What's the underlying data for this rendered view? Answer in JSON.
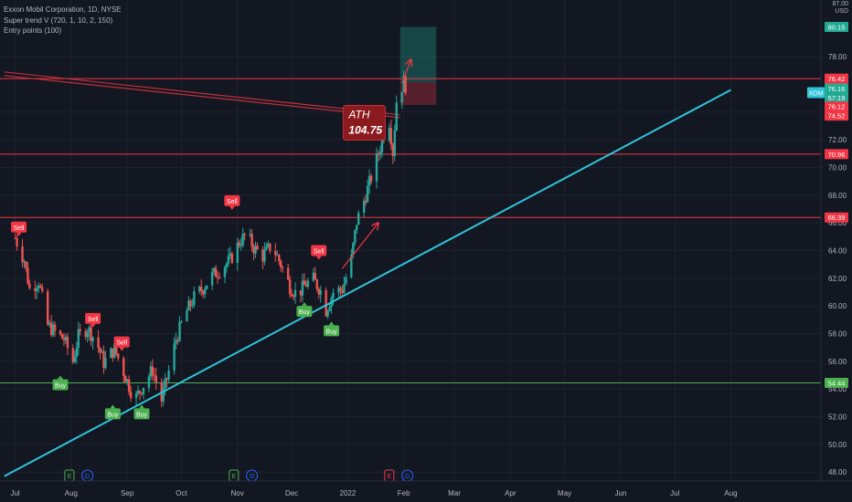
{
  "legend": {
    "symbol_line": "Exxon Mobil Corporation, 1D, NYSE",
    "indicator_1": "Super trend V (720, 1, 10, 2, 150)",
    "indicator_2": "Entry points (100)"
  },
  "chart_data": {
    "type": "candlestick",
    "symbol": "XOM",
    "timeframe": "1D",
    "exchange": "NYSE",
    "currency_label": "USD",
    "price_axis_top_label": "87.00",
    "y_ticks": [
      48.0,
      50.0,
      52.0,
      54.0,
      56.0,
      58.0,
      60.0,
      62.0,
      64.0,
      66.0,
      68.0,
      70.0,
      72.0,
      74.0,
      78.0
    ],
    "ylim": [
      47.4,
      82.4
    ],
    "x_ticks": [
      {
        "label": "Jul",
        "day": 0
      },
      {
        "label": "Aug",
        "day": 31
      },
      {
        "label": "Sep",
        "day": 62
      },
      {
        "label": "Oct",
        "day": 92
      },
      {
        "label": "Nov",
        "day": 123
      },
      {
        "label": "Dec",
        "day": 153
      },
      {
        "label": "2022",
        "day": 184
      },
      {
        "label": "Feb",
        "day": 215
      },
      {
        "label": "Mar",
        "day": 243
      },
      {
        "label": "Apr",
        "day": 274
      },
      {
        "label": "May",
        "day": 304
      },
      {
        "label": "Jun",
        "day": 335
      },
      {
        "label": "Jul",
        "day": 365
      },
      {
        "label": "Aug",
        "day": 396
      }
    ],
    "price_path": [
      {
        "date": "2021-07-01",
        "close": 64.9
      },
      {
        "date": "2021-07-06",
        "close": 63.3
      },
      {
        "date": "2021-07-09",
        "close": 61.2
      },
      {
        "date": "2021-07-14",
        "close": 61.8
      },
      {
        "date": "2021-07-19",
        "close": 58.6
      },
      {
        "date": "2021-07-23",
        "close": 58.1
      },
      {
        "date": "2021-07-28",
        "close": 57.6
      },
      {
        "date": "2021-08-02",
        "close": 56.0
      },
      {
        "date": "2021-08-05",
        "close": 57.8
      },
      {
        "date": "2021-08-10",
        "close": 58.4
      },
      {
        "date": "2021-08-15",
        "close": 57.4
      },
      {
        "date": "2021-08-19",
        "close": 55.9
      },
      {
        "date": "2021-08-25",
        "close": 56.9
      },
      {
        "date": "2021-08-31",
        "close": 54.9
      },
      {
        "date": "2021-09-05",
        "close": 53.2
      },
      {
        "date": "2021-09-10",
        "close": 54.3
      },
      {
        "date": "2021-09-15",
        "close": 55.4
      },
      {
        "date": "2021-09-20",
        "close": 53.2
      },
      {
        "date": "2021-09-25",
        "close": 55.8
      },
      {
        "date": "2021-09-28",
        "close": 57.6
      },
      {
        "date": "2021-10-03",
        "close": 59.4
      },
      {
        "date": "2021-10-08",
        "close": 60.6
      },
      {
        "date": "2021-10-13",
        "close": 61.3
      },
      {
        "date": "2021-10-18",
        "close": 62.2
      },
      {
        "date": "2021-10-23",
        "close": 62.7
      },
      {
        "date": "2021-10-28",
        "close": 63.3
      },
      {
        "date": "2021-11-02",
        "close": 64.6
      },
      {
        "date": "2021-11-06",
        "close": 65.2
      },
      {
        "date": "2021-11-10",
        "close": 64.2
      },
      {
        "date": "2021-11-15",
        "close": 63.6
      },
      {
        "date": "2021-11-20",
        "close": 64.4
      },
      {
        "date": "2021-11-25",
        "close": 63.0
      },
      {
        "date": "2021-11-30",
        "close": 61.4
      },
      {
        "date": "2021-12-04",
        "close": 60.8
      },
      {
        "date": "2021-12-09",
        "close": 61.6
      },
      {
        "date": "2021-12-13",
        "close": 61.9
      },
      {
        "date": "2021-12-17",
        "close": 61.1
      },
      {
        "date": "2021-12-20",
        "close": 59.7
      },
      {
        "date": "2021-12-24",
        "close": 61.0
      },
      {
        "date": "2021-12-29",
        "close": 61.2
      },
      {
        "date": "2022-01-03",
        "close": 63.4
      },
      {
        "date": "2022-01-06",
        "close": 66.1
      },
      {
        "date": "2022-01-10",
        "close": 67.6
      },
      {
        "date": "2022-01-14",
        "close": 69.3
      },
      {
        "date": "2022-01-18",
        "close": 71.0
      },
      {
        "date": "2022-01-21",
        "close": 72.4
      },
      {
        "date": "2022-01-24",
        "close": 73.3
      },
      {
        "date": "2022-01-26",
        "close": 71.1
      },
      {
        "date": "2022-01-28",
        "close": 74.8
      },
      {
        "date": "2022-02-01",
        "close": 76.2
      },
      {
        "date": "2022-02-02",
        "close": 75.9
      }
    ],
    "horizontal_levels": [
      {
        "price": 76.42,
        "label": "76.42",
        "color": "#f23645"
      },
      {
        "price": 70.96,
        "label": "70.96",
        "color": "#f23645"
      },
      {
        "price": 66.39,
        "label": "66.39",
        "color": "#f23645"
      },
      {
        "price": 54.44,
        "label": "54.44",
        "color": "#4caf50"
      }
    ],
    "price_labels": [
      {
        "price": 80.15,
        "label": "80.15",
        "color": "#22ab94"
      },
      {
        "price": 76.42,
        "label": "76.42",
        "color": "#f23645"
      },
      {
        "price": 75.7,
        "label": "76.16",
        "color": "#22ab94"
      },
      {
        "price": 75.05,
        "label": "57:19",
        "color": "#22ab94"
      },
      {
        "price": 74.4,
        "label": "76.12",
        "color": "#f23645"
      },
      {
        "price": 73.75,
        "label": "74.52",
        "color": "#f23645"
      },
      {
        "price": 70.96,
        "label": "70.96",
        "color": "#f23645"
      },
      {
        "price": 66.39,
        "label": "66.39",
        "color": "#f23645"
      },
      {
        "price": 54.44,
        "label": "54.44",
        "color": "#4caf50"
      }
    ],
    "trendline": {
      "from": {
        "day": -6,
        "price": 47.7
      },
      "to": {
        "day": 396,
        "price": 75.6
      },
      "color": "#2fc4d8",
      "label": "XOM"
    },
    "channel_line": {
      "from": {
        "day": -6,
        "price": 76.9
      },
      "to": {
        "day": 213,
        "price": 73.8
      },
      "color": "#c0303a"
    },
    "annotation": {
      "title": "ATH",
      "value": "104.75",
      "day": 183,
      "price": 72.9
    },
    "position_box": {
      "day_start": 213,
      "day_end": 233,
      "entry": 76.16,
      "target": 80.15,
      "stop": 74.52,
      "profit_color": "rgba(34,171,148,0.32)",
      "loss_color": "rgba(242,54,69,0.30)"
    },
    "arrows": [
      {
        "from": {
          "day": 181,
          "price": 62.7
        },
        "to": {
          "day": 201,
          "price": 66.0
        },
        "color": "#f23645"
      },
      {
        "from": {
          "day": 214,
          "price": 76.1
        },
        "to": {
          "day": 219,
          "price": 77.8
        },
        "color": "#f23645"
      }
    ],
    "signals": [
      {
        "type": "sell",
        "label": "Sell",
        "day": 2,
        "price": 65.3
      },
      {
        "type": "buy",
        "label": "Buy",
        "day": 25,
        "price": 54.7
      },
      {
        "type": "sell",
        "label": "Sell",
        "day": 43,
        "price": 58.7
      },
      {
        "type": "sell",
        "label": "Sell",
        "day": 59,
        "price": 57.0
      },
      {
        "type": "buy",
        "label": "Buy",
        "day": 54,
        "price": 52.6
      },
      {
        "type": "buy",
        "label": "Buy",
        "day": 70,
        "price": 52.6
      },
      {
        "type": "sell",
        "label": "Sell",
        "day": 120,
        "price": 67.2
      },
      {
        "type": "sell",
        "label": "Sell",
        "day": 168,
        "price": 63.6
      },
      {
        "type": "buy",
        "label": "Buy",
        "day": 160,
        "price": 60.0
      },
      {
        "type": "buy",
        "label": "Buy",
        "day": 175,
        "price": 58.6
      }
    ],
    "event_markers": [
      {
        "letter": "E",
        "day": 30,
        "color": "#4caf50"
      },
      {
        "letter": "D",
        "day": 40,
        "color": "#2962ff"
      },
      {
        "letter": "E",
        "day": 121,
        "color": "#4caf50"
      },
      {
        "letter": "D",
        "day": 131,
        "color": "#2962ff"
      },
      {
        "letter": "E",
        "day": 207,
        "color": "#f23645"
      },
      {
        "letter": "D",
        "day": 217,
        "color": "#2962ff"
      }
    ]
  },
  "colors": {
    "background": "#131722",
    "grid": "#1e222d",
    "up_candle": "#26a69a",
    "down_candle": "#ef5350",
    "axis_text": "#b2b5be"
  }
}
